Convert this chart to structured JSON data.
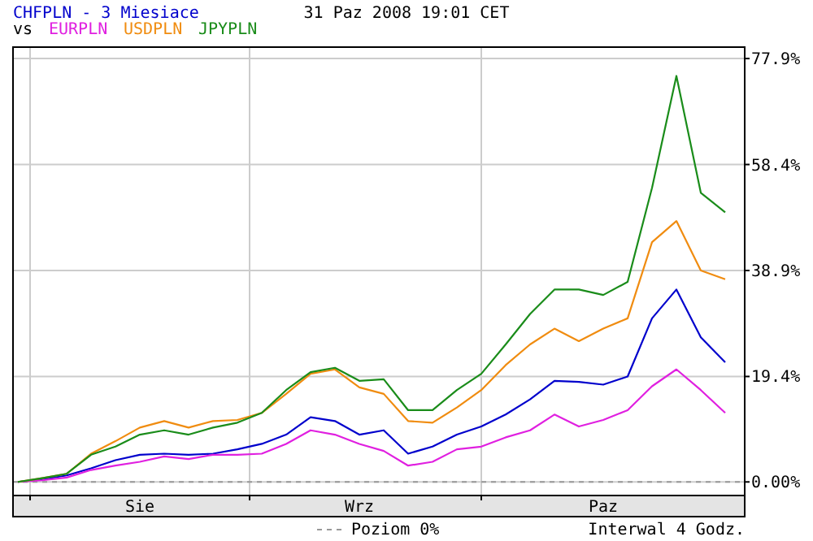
{
  "chart_data": {
    "type": "line",
    "title": "CHFPLN - 3 Miesiace",
    "subtitle": "31 Paz 2008 19:01 CET",
    "legend_title": "vs",
    "legend": "bottom",
    "grid": true,
    "categories": [
      null,
      null,
      null,
      null,
      null,
      "Sie",
      null,
      null,
      null,
      null,
      null,
      null,
      null,
      null,
      "Wrz",
      null,
      null,
      null,
      null,
      null,
      null,
      null,
      null,
      null,
      "Paz",
      null,
      null,
      null,
      null,
      null
    ],
    "series": [
      {
        "color": "#0000cc",
        "values": [
          0,
          0.5,
          1.2,
          2.5,
          4.0,
          5.0,
          5.2,
          5.0,
          5.2,
          6.0,
          7.0,
          8.7,
          11.9,
          11.2,
          8.7,
          9.5,
          5.2,
          6.5,
          8.7,
          10.2,
          12.4,
          15.2,
          18.6,
          18.4,
          17.9,
          19.4,
          30.1,
          35.4,
          26.6,
          22.0
        ]
      },
      {
        "name": "EURPLN",
        "color": "#e020e0",
        "values": [
          0,
          0.3,
          0.8,
          2.2,
          3.0,
          3.7,
          4.7,
          4.2,
          5.0,
          5.0,
          5.2,
          7.0,
          9.5,
          8.7,
          7.0,
          5.7,
          3.0,
          3.7,
          6.0,
          6.5,
          8.2,
          9.5,
          12.4,
          10.2,
          11.4,
          13.2,
          17.6,
          20.7,
          16.9,
          12.7
        ]
      },
      {
        "name": "USDPLN",
        "color": "#f08c10",
        "values": [
          0,
          0.7,
          1.5,
          5.2,
          7.5,
          10.0,
          11.2,
          10.0,
          11.2,
          11.4,
          12.7,
          16.2,
          19.9,
          20.7,
          17.4,
          16.2,
          11.2,
          10.9,
          13.7,
          16.9,
          21.5,
          25.3,
          28.2,
          25.9,
          28.2,
          30.1,
          44.1,
          48.0,
          38.9,
          37.3
        ]
      },
      {
        "name": "JPYPLN",
        "color": "#1a8c1a",
        "values": [
          0,
          0.7,
          1.5,
          5.0,
          6.5,
          8.7,
          9.5,
          8.7,
          10.0,
          10.9,
          12.7,
          16.9,
          20.2,
          21.0,
          18.6,
          18.9,
          13.2,
          13.2,
          16.9,
          19.9,
          25.3,
          30.9,
          35.4,
          35.4,
          34.4,
          36.8,
          54.1,
          74.7,
          53.2,
          49.6
        ]
      }
    ],
    "ylim": [
      -2.5,
      80
    ],
    "yticks": [
      {
        "value": 0,
        "label": "0.00%"
      },
      {
        "value": 19.4,
        "label": "19.4%"
      },
      {
        "value": 38.9,
        "label": "38.9%"
      },
      {
        "value": 58.4,
        "label": "58.4%"
      },
      {
        "value": 77.9,
        "label": "77.9%"
      }
    ],
    "ref_lines": [
      {
        "axis": "y",
        "value": 0,
        "label": "Poziom 0%",
        "color": "#999999",
        "line_style": "dashed"
      }
    ],
    "annotations": [
      "Interwal 4 Godz."
    ]
  }
}
